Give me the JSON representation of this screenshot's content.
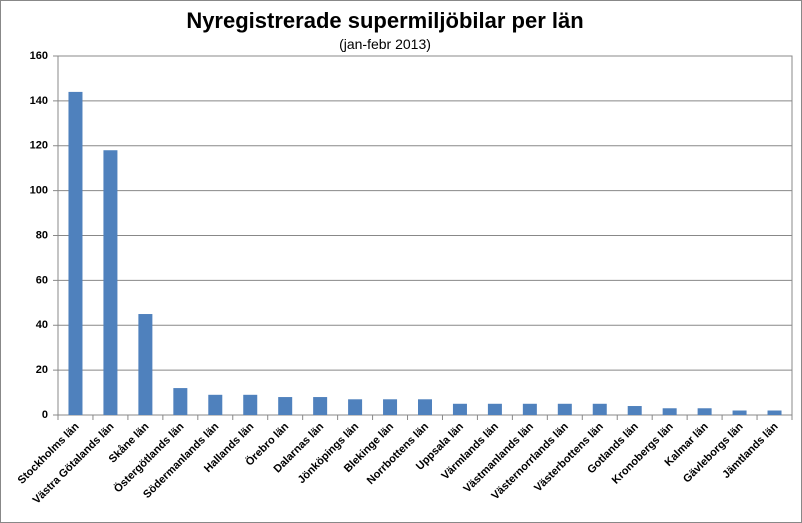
{
  "chart_data": {
    "type": "bar",
    "title": "Nyregistrerade supermiljöbilar per län",
    "subtitle": "(jan-febr 2013)",
    "categories": [
      "Stockholms län",
      "Västra Götalands län",
      "Skåne län",
      "Östergötlands län",
      "Södermanlands län",
      "Hallands län",
      "Örebro län",
      "Dalarnas län",
      "Jönköpings län",
      "Blekinge län",
      "Norrbottens län",
      "Uppsala län",
      "Värmlands län",
      "Västmanlands län",
      "Västernorrlands län",
      "Västerbottens län",
      "Gotlands län",
      "Kronobergs län",
      "Kalmar län",
      "Gävleborgs län",
      "Jämtlands län"
    ],
    "values": [
      144,
      118,
      45,
      12,
      9,
      9,
      8,
      8,
      7,
      7,
      7,
      5,
      5,
      5,
      5,
      5,
      4,
      3,
      3,
      2,
      2
    ],
    "color": "#4f81bd",
    "ylim": [
      0,
      160
    ],
    "yticks": [
      0,
      20,
      40,
      60,
      80,
      100,
      120,
      140,
      160
    ],
    "grid": true
  }
}
